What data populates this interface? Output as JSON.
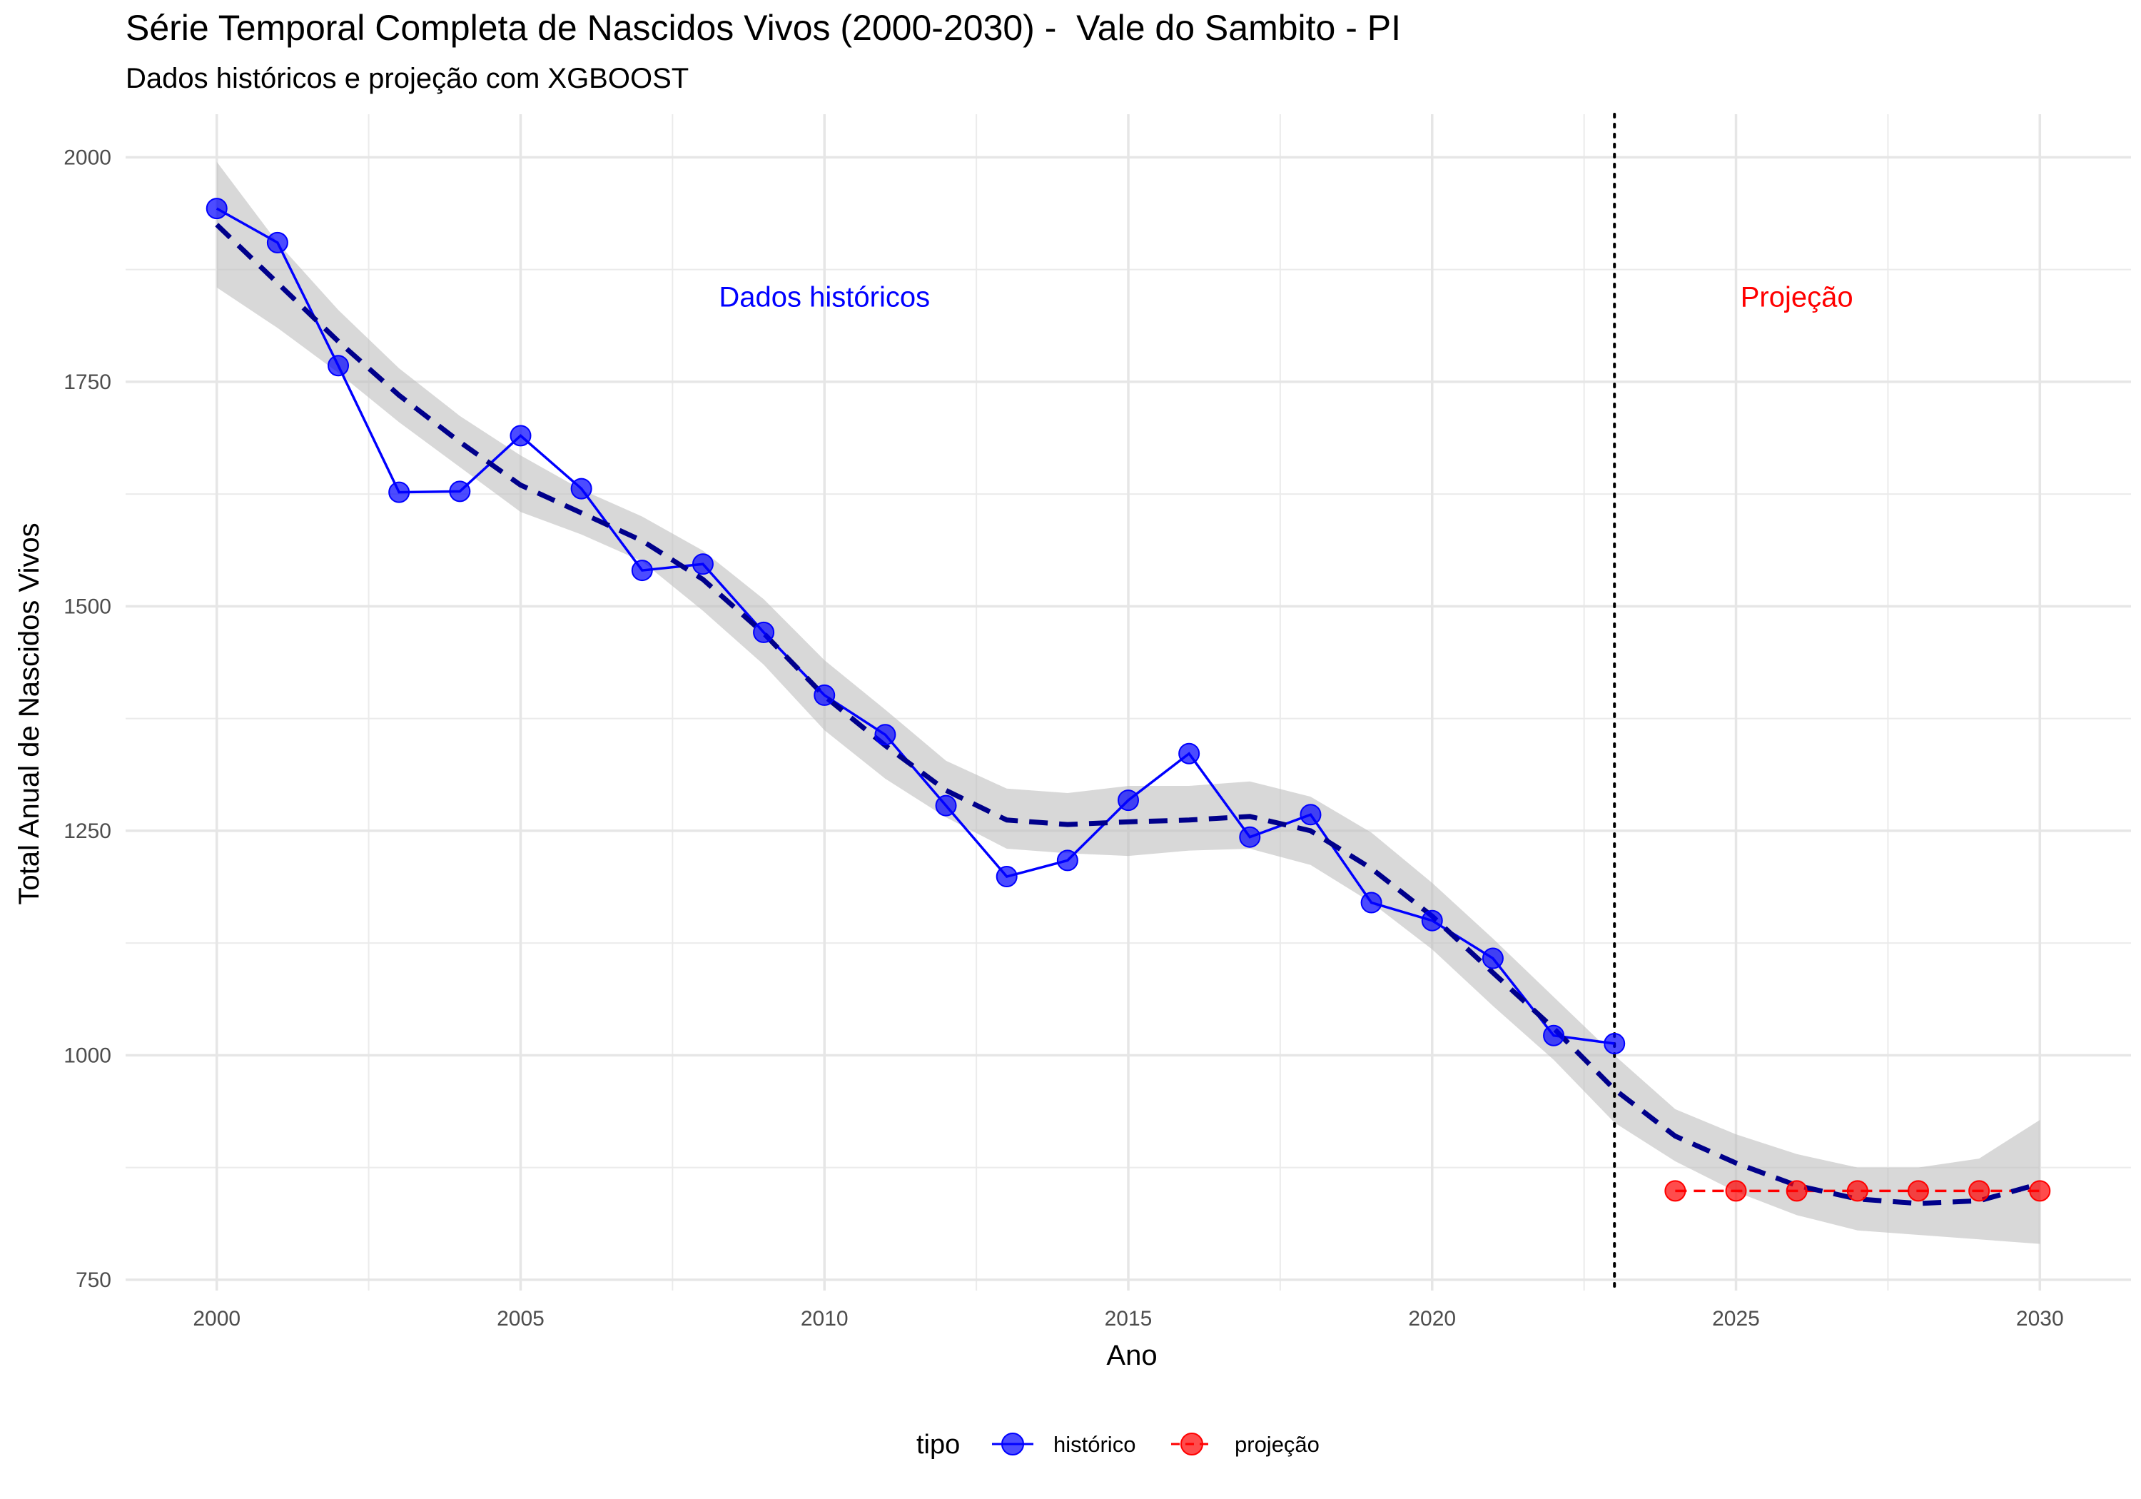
{
  "chart_data": {
    "type": "line",
    "title": "Série Temporal Completa de Nascidos Vivos (2000-2030) -  Vale do Sambito - PI",
    "subtitle": "Dados históricos e projeção com XGBOOST",
    "xlabel": "Ano",
    "ylabel": "Total Anual de Nascidos Vivos",
    "xlim": [
      1998.5,
      2031.5
    ],
    "ylim": [
      738,
      2048
    ],
    "x_ticks": [
      2000,
      2005,
      2010,
      2015,
      2020,
      2025,
      2030
    ],
    "y_ticks": [
      750,
      1000,
      1250,
      1500,
      1750,
      2000
    ],
    "grid": true,
    "legend": {
      "title": "tipo",
      "position": "bottom",
      "entries": [
        "histórico",
        "projeção"
      ]
    },
    "series": [
      {
        "name": "histórico",
        "color": "#0000ff",
        "line_style": "solid",
        "x": [
          2000,
          2001,
          2002,
          2003,
          2004,
          2005,
          2006,
          2007,
          2008,
          2009,
          2010,
          2011,
          2012,
          2013,
          2014,
          2015,
          2016,
          2017,
          2018,
          2019,
          2020,
          2021,
          2022,
          2023
        ],
        "y": [
          1943,
          1905,
          1768,
          1627,
          1628,
          1690,
          1631,
          1540,
          1547,
          1471,
          1401,
          1357,
          1278,
          1199,
          1217,
          1284,
          1336,
          1243,
          1268,
          1170,
          1150,
          1108,
          1022,
          1013
        ]
      },
      {
        "name": "projeção",
        "color": "#ff0000",
        "line_style": "dashed",
        "x": [
          2024,
          2025,
          2026,
          2027,
          2028,
          2029,
          2030
        ],
        "y": [
          849,
          849,
          849,
          849,
          849,
          849,
          849
        ]
      }
    ],
    "trend": {
      "color": "#00008b",
      "line_style": "dashed",
      "band_color": "#bebebe",
      "x": [
        2000,
        2001,
        2002,
        2003,
        2004,
        2005,
        2006,
        2007,
        2008,
        2009,
        2010,
        2011,
        2012,
        2013,
        2014,
        2015,
        2016,
        2017,
        2018,
        2019,
        2020,
        2021,
        2022,
        2023,
        2024,
        2025,
        2026,
        2027,
        2028,
        2029,
        2030
      ],
      "y": [
        1925,
        1860,
        1795,
        1735,
        1683,
        1635,
        1604,
        1573,
        1530,
        1470,
        1400,
        1345,
        1295,
        1262,
        1257,
        1260,
        1262,
        1266,
        1250,
        1208,
        1155,
        1092,
        1030,
        962,
        910,
        880,
        855,
        840,
        835,
        838,
        857
      ],
      "lower": [
        1855,
        1810,
        1760,
        1705,
        1655,
        1605,
        1580,
        1550,
        1495,
        1435,
        1362,
        1308,
        1265,
        1230,
        1225,
        1222,
        1228,
        1230,
        1212,
        1170,
        1118,
        1055,
        995,
        925,
        882,
        848,
        822,
        805,
        800,
        795,
        790
      ],
      "upper": [
        1995,
        1905,
        1830,
        1765,
        1712,
        1668,
        1630,
        1600,
        1562,
        1508,
        1440,
        1385,
        1328,
        1297,
        1292,
        1300,
        1300,
        1305,
        1288,
        1248,
        1192,
        1130,
        1065,
        1000,
        940,
        912,
        890,
        875,
        875,
        885,
        928
      ]
    },
    "vline": {
      "x": 2023,
      "style": "dotted",
      "color": "#000000"
    },
    "annotations": [
      {
        "text": "Dados históricos",
        "x": 2010,
        "y": 1845,
        "color": "#0000ff"
      },
      {
        "text": "Projeção",
        "x": 2026,
        "y": 1845,
        "color": "#ff0000"
      }
    ]
  }
}
